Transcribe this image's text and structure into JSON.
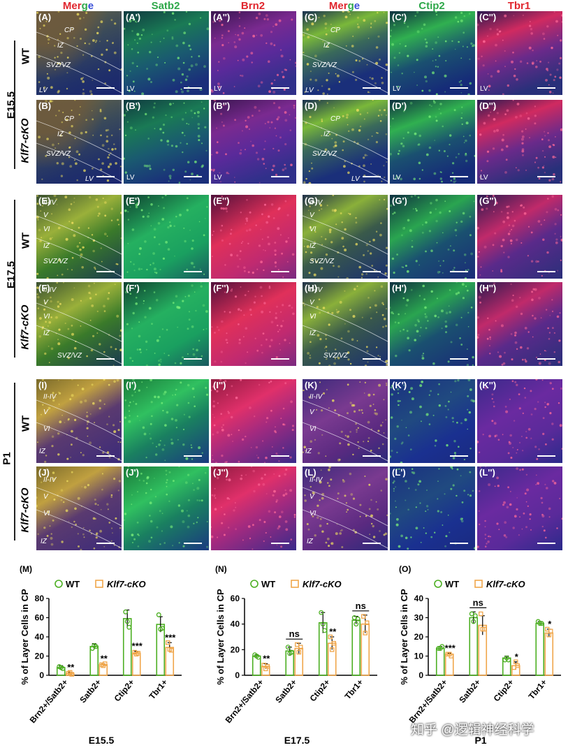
{
  "headers": [
    {
      "text": "Merge",
      "colored": true
    },
    {
      "text": "Satb2",
      "color": "#2fa84a"
    },
    {
      "text": "Brn2",
      "color": "#e0262e"
    },
    {
      "text": "Merge",
      "colored": true
    },
    {
      "text": "Ctip2",
      "color": "#2fa84a"
    },
    {
      "text": "Tbr1",
      "color": "#e0262e"
    }
  ],
  "stage_labels": [
    "E15.5",
    "E17.5",
    "P1"
  ],
  "genotype_labels": {
    "wt": "WT",
    "cko": "Klf7-cKO"
  },
  "row_panels": [
    [
      "(A)",
      "(A')",
      "(A'')",
      "(C)",
      "(C')",
      "(C'')"
    ],
    [
      "(B)",
      "(B')",
      "(B'')",
      "(D)",
      "(D')",
      "(D'')"
    ],
    [
      "(E)",
      "(E')",
      "(E'')",
      "(G)",
      "(G')",
      "(G'')"
    ],
    [
      "(F)",
      "(F')",
      "(F'')",
      "(H)",
      "(H')",
      "(H'')"
    ],
    [
      "(I)",
      "(I')",
      "(I'')",
      "(K)",
      "(K')",
      "(K'')"
    ],
    [
      "(J)",
      "(J')",
      "(J'')",
      "(L)",
      "(L')",
      "(L'')"
    ]
  ],
  "region_labels": {
    "cp": "CP",
    "iz": "IZ",
    "svz": "SVZ/VZ",
    "lv": "LV",
    "l24": "II-IV",
    "l5": "V",
    "l6": "VI"
  },
  "colors": {
    "wt": "#4caf22",
    "cko": "#f0a64a",
    "green": "#2fa84a",
    "red": "#e0262e",
    "blue": "#3a4fd8"
  },
  "chart_data": [
    {
      "type": "bar",
      "panel": "(M)",
      "legend": [
        "WT",
        "Klf7-cKO"
      ],
      "ylabel": "% of Layer Cells in CP",
      "xlabel": "E15.5",
      "ylim": [
        0,
        80
      ],
      "yticks": [
        0,
        20,
        40,
        60,
        80
      ],
      "categories": [
        "Brn2+/Satb2+",
        "Satb2+",
        "Ctip2+",
        "Tbr1+"
      ],
      "series": [
        {
          "name": "WT",
          "values": [
            8,
            30,
            59,
            53
          ],
          "err": [
            2,
            3,
            9,
            8
          ],
          "points": [
            [
              9,
              8,
              7
            ],
            [
              28,
              31,
              30
            ],
            [
              66,
              56,
              50
            ],
            [
              63,
              48,
              49
            ]
          ]
        },
        {
          "name": "Klf7-cKO",
          "values": [
            2,
            11,
            23,
            29
          ],
          "err": [
            1,
            1,
            2,
            5
          ],
          "points": [
            [
              2,
              3,
              1
            ],
            [
              11,
              10,
              12
            ],
            [
              24,
              22,
              23
            ],
            [
              34,
              27,
              26
            ]
          ]
        }
      ],
      "sig": [
        "**",
        "**",
        "***",
        "***"
      ]
    },
    {
      "type": "bar",
      "panel": "(N)",
      "legend": [
        "WT",
        "Klf7-cKO"
      ],
      "ylabel": "% of Layer Cells in CP",
      "xlabel": "E17.5",
      "ylim": [
        0,
        60
      ],
      "yticks": [
        0,
        20,
        40,
        60
      ],
      "categories": [
        "Brn2+/Satb2+",
        "Satb2+",
        "Ctip2+",
        "Tbr1+"
      ],
      "series": [
        {
          "name": "WT",
          "values": [
            15,
            19,
            41,
            43
          ],
          "err": [
            1,
            3,
            8,
            3
          ],
          "points": [
            [
              16,
              15,
              14
            ],
            [
              22,
              17,
              18
            ],
            [
              49,
              40,
              35
            ],
            [
              45,
              40,
              44
            ]
          ]
        },
        {
          "name": "Klf7-cKO",
          "values": [
            7,
            21,
            25,
            40
          ],
          "err": [
            2,
            4,
            5,
            7
          ],
          "points": [
            [
              8,
              5,
              7
            ],
            [
              24,
              18,
              22
            ],
            [
              30,
              20,
              25
            ],
            [
              46,
              33,
              41
            ]
          ]
        }
      ],
      "sig": [
        "**",
        "ns",
        "**",
        "ns"
      ]
    },
    {
      "type": "bar",
      "panel": "(O)",
      "legend": [
        "WT",
        "Klf7-cKO"
      ],
      "ylabel": "% of Layer Cells in CP",
      "xlabel": "P1",
      "ylim": [
        0,
        40
      ],
      "yticks": [
        0,
        10,
        20,
        30,
        40
      ],
      "categories": [
        "Brn2+/Satb2+",
        "Satb2+",
        "Ctip2+",
        "Tbr1+"
      ],
      "series": [
        {
          "name": "WT",
          "values": [
            14,
            30,
            9,
            27
          ],
          "err": [
            1,
            3,
            1,
            1
          ],
          "points": [
            [
              14,
              14,
              15
            ],
            [
              32,
              28,
              31
            ],
            [
              8,
              9,
              8
            ],
            [
              28,
              27,
              27
            ]
          ]
        },
        {
          "name": "Klf7-cKO",
          "values": [
            11,
            26,
            5,
            22
          ],
          "err": [
            0.5,
            5,
            2,
            2
          ],
          "points": [
            [
              11,
              11,
              10
            ],
            [
              32,
              24,
              24
            ],
            [
              4,
              7,
              5
            ],
            [
              24,
              21,
              23
            ]
          ]
        }
      ],
      "sig": [
        "***",
        "ns",
        "*",
        "*"
      ]
    }
  ],
  "watermark": "知乎 @逻辑神经科学"
}
